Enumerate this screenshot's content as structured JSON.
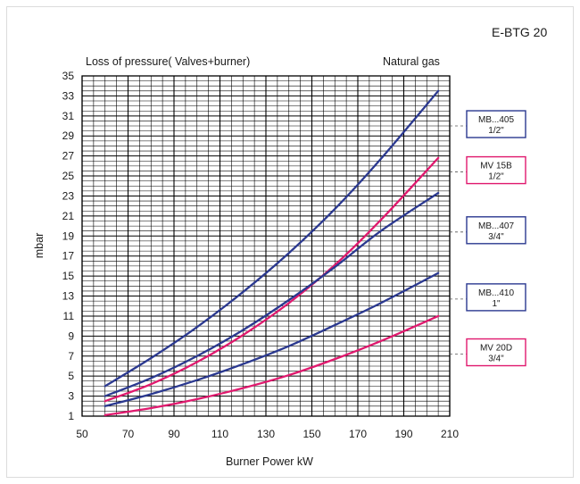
{
  "header": {
    "model_id": "E-BTG 20",
    "subtitle": "Loss of pressure( Valves+burner)",
    "fuel": "Natural gas"
  },
  "chart_data": {
    "type": "line",
    "xlabel": "Burner Power  kW",
    "ylabel": "mbar",
    "xlim": [
      50,
      210
    ],
    "ylim": [
      1,
      35
    ],
    "x_ticks": [
      50,
      70,
      90,
      110,
      130,
      150,
      170,
      190,
      210
    ],
    "y_ticks": [
      1,
      3,
      5,
      7,
      9,
      11,
      13,
      15,
      17,
      19,
      21,
      23,
      25,
      27,
      29,
      31,
      33,
      35
    ],
    "grid": true,
    "series": [
      {
        "name": "MB...405 1/2\"",
        "color": "#2b3990",
        "x": [
          60,
          80,
          100,
          120,
          140,
          160,
          180,
          205
        ],
        "y": [
          4.0,
          6.8,
          9.9,
          13.4,
          17.3,
          21.7,
          26.7,
          33.5
        ]
      },
      {
        "name": "MV 15B 1/2\"",
        "color": "#e0196e",
        "x": [
          60,
          80,
          100,
          120,
          140,
          160,
          180,
          205
        ],
        "y": [
          2.5,
          4.2,
          6.4,
          9.1,
          12.3,
          16.1,
          20.6,
          26.8
        ]
      },
      {
        "name": "MB...407 3/4\"",
        "color": "#2b3990",
        "x": [
          60,
          80,
          100,
          120,
          140,
          160,
          180,
          205
        ],
        "y": [
          3.0,
          4.8,
          7.0,
          9.6,
          12.6,
          15.9,
          19.5,
          23.3
        ]
      },
      {
        "name": "MB...410 1\"",
        "color": "#2b3990",
        "x": [
          60,
          80,
          100,
          120,
          140,
          160,
          180,
          205
        ],
        "y": [
          2.0,
          3.2,
          4.6,
          6.2,
          8.0,
          10.1,
          12.3,
          15.3
        ]
      },
      {
        "name": "MV 20D 3/4\"",
        "color": "#e0196e",
        "x": [
          60,
          80,
          100,
          120,
          140,
          160,
          180,
          205
        ],
        "y": [
          1.1,
          1.8,
          2.7,
          3.8,
          5.1,
          6.7,
          8.5,
          11.0
        ]
      }
    ],
    "labels": [
      {
        "line1": "MB...405",
        "line2": "1/2\"",
        "color": "#2b3990",
        "y": 30.0
      },
      {
        "line1": "MV  15B",
        "line2": "1/2\"",
        "color": "#e0196e",
        "y": 25.4
      },
      {
        "line1": "MB...407",
        "line2": "3/4\"",
        "color": "#2b3990",
        "y": 19.4
      },
      {
        "line1": "MB...410",
        "line2": "1\"",
        "color": "#2b3990",
        "y": 12.7
      },
      {
        "line1": "MV  20D",
        "line2": "3/4\"",
        "color": "#e0196e",
        "y": 7.2
      }
    ]
  }
}
